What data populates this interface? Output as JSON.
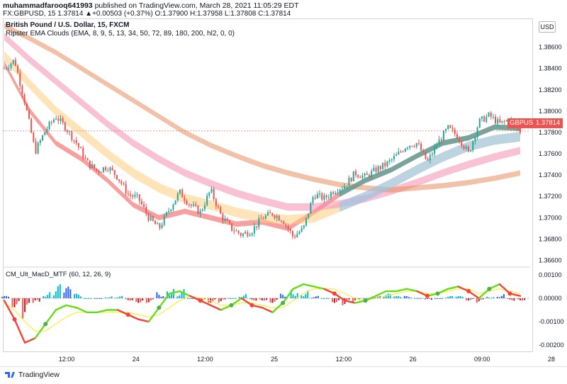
{
  "header": {
    "user": "muhammadfarooq641993",
    "published": "published on TradingView.com, March 28, 2021 11:05:29 EDT",
    "symbol_line": "FX:GBPUSD, 15  1.37814  ▲+0.00503 (+0.37%)  O:1.37900  H:1.37958  L:1.37808  C:1.37814"
  },
  "legend": {
    "title": "British Pound / U.S. Dollar, 15, FXCM",
    "indicator1": "Ripster EMA Clouds (EMA, 8, 9, 5, 13, 34, 50, 72, 89, 180, 200, hl2, 0, 0)",
    "indicator2": "CM_Ult_MacD_MTF (60, 12, 26, 9)"
  },
  "currency_label": "USD",
  "symbol_badge": "GBPUSD",
  "price_badge": "1.37814",
  "footer": {
    "brand": "TradingView"
  },
  "colors": {
    "bull": "#26a69a",
    "bear": "#ef5350",
    "cloud_fast": "#ef5350",
    "cloud_mid": "#ffcc80",
    "cloud_slow": "#f48fb1",
    "cloud_slowest": "#e5905f",
    "cloud_fast_bull": "#26a69a",
    "cloud_mid_bull": "#90caf9"
  },
  "chart_data": [
    {
      "type": "candlestick",
      "title": "British Pound / U.S. Dollar, 15, FXCM",
      "y_ticks": [
        "1.38600",
        "1.38400",
        "1.38200",
        "1.38000",
        "1.37800",
        "1.37600",
        "1.37400",
        "1.37200",
        "1.37000",
        "1.36800",
        "1.36600"
      ],
      "x_ticks": [
        "12:00",
        "24",
        "12:00",
        "25",
        "12:00",
        "26",
        "09:00",
        "28"
      ],
      "ylim": [
        1.3655,
        1.3875
      ],
      "last_price": 1.37814,
      "close_path": [
        {
          "t": 0,
          "p": 1.384
        },
        {
          "t": 0.02,
          "p": 1.3848
        },
        {
          "t": 0.04,
          "p": 1.3808
        },
        {
          "t": 0.06,
          "p": 1.3762
        },
        {
          "t": 0.08,
          "p": 1.3782
        },
        {
          "t": 0.1,
          "p": 1.3795
        },
        {
          "t": 0.12,
          "p": 1.3784
        },
        {
          "t": 0.14,
          "p": 1.377
        },
        {
          "t": 0.16,
          "p": 1.3752
        },
        {
          "t": 0.18,
          "p": 1.3744
        },
        {
          "t": 0.2,
          "p": 1.3748
        },
        {
          "t": 0.22,
          "p": 1.3738
        },
        {
          "t": 0.24,
          "p": 1.3722
        },
        {
          "t": 0.26,
          "p": 1.3718
        },
        {
          "t": 0.28,
          "p": 1.37
        },
        {
          "t": 0.3,
          "p": 1.369
        },
        {
          "t": 0.32,
          "p": 1.3708
        },
        {
          "t": 0.34,
          "p": 1.3724
        },
        {
          "t": 0.36,
          "p": 1.3712
        },
        {
          "t": 0.38,
          "p": 1.3705
        },
        {
          "t": 0.4,
          "p": 1.3726
        },
        {
          "t": 0.42,
          "p": 1.3702
        },
        {
          "t": 0.44,
          "p": 1.369
        },
        {
          "t": 0.46,
          "p": 1.3684
        },
        {
          "t": 0.48,
          "p": 1.3688
        },
        {
          "t": 0.5,
          "p": 1.37
        },
        {
          "t": 0.52,
          "p": 1.3704
        },
        {
          "t": 0.54,
          "p": 1.3698
        },
        {
          "t": 0.56,
          "p": 1.3682
        },
        {
          "t": 0.58,
          "p": 1.369
        },
        {
          "t": 0.6,
          "p": 1.3722
        },
        {
          "t": 0.62,
          "p": 1.3718
        },
        {
          "t": 0.64,
          "p": 1.3726
        },
        {
          "t": 0.66,
          "p": 1.373
        },
        {
          "t": 0.68,
          "p": 1.3742
        },
        {
          "t": 0.7,
          "p": 1.3738
        },
        {
          "t": 0.72,
          "p": 1.3745
        },
        {
          "t": 0.74,
          "p": 1.375
        },
        {
          "t": 0.76,
          "p": 1.3758
        },
        {
          "t": 0.78,
          "p": 1.3768
        },
        {
          "t": 0.8,
          "p": 1.377
        },
        {
          "t": 0.82,
          "p": 1.3752
        },
        {
          "t": 0.84,
          "p": 1.377
        },
        {
          "t": 0.86,
          "p": 1.3784
        },
        {
          "t": 0.88,
          "p": 1.3776
        },
        {
          "t": 0.9,
          "p": 1.376
        },
        {
          "t": 0.92,
          "p": 1.379
        },
        {
          "t": 0.94,
          "p": 1.3796
        },
        {
          "t": 0.96,
          "p": 1.3788
        },
        {
          "t": 0.98,
          "p": 1.3792
        },
        {
          "t": 1.0,
          "p": 1.37814
        }
      ],
      "ema_clouds": [
        {
          "name": "5/13",
          "points": [
            1.3845,
            1.38,
            1.377,
            1.3755,
            1.3735,
            1.3712,
            1.37,
            1.3706,
            1.37,
            1.3694,
            1.3696,
            1.369,
            1.3705,
            1.3722,
            1.3735,
            1.3745,
            1.3758,
            1.377,
            1.3775,
            1.3785,
            1.3784
          ],
          "width": 0.00025
        },
        {
          "name": "34/50",
          "points": [
            1.3852,
            1.3825,
            1.38,
            1.378,
            1.376,
            1.3742,
            1.3728,
            1.3718,
            1.3712,
            1.3705,
            1.37,
            1.3698,
            1.37,
            1.371,
            1.372,
            1.3732,
            1.3745,
            1.3757,
            1.3767,
            1.3773,
            1.3776
          ],
          "width": 0.00045
        },
        {
          "name": "72/89",
          "points": [
            1.387,
            1.3848,
            1.3828,
            1.3808,
            1.3788,
            1.377,
            1.3755,
            1.3742,
            1.3732,
            1.3723,
            1.3716,
            1.371,
            1.371,
            1.3713,
            1.3718,
            1.3725,
            1.3733,
            1.3742,
            1.375,
            1.3757,
            1.3763
          ],
          "width": 0.00035
        },
        {
          "name": "180/200",
          "points": [
            1.388,
            1.3868,
            1.3855,
            1.384,
            1.3825,
            1.381,
            1.3795,
            1.378,
            1.3768,
            1.3758,
            1.3749,
            1.3742,
            1.3736,
            1.3731,
            1.3728,
            1.3726,
            1.3728,
            1.373,
            1.3733,
            1.3737,
            1.3742
          ],
          "width": 0.00025
        }
      ]
    },
    {
      "type": "line",
      "title": "CM_Ult_MacD_MTF (60, 12, 26, 9)",
      "y_ticks": [
        "0.00100",
        "0.00000",
        "-0.00100",
        "-0.00200"
      ],
      "ylim": [
        -0.0023,
        0.0013
      ],
      "series": [
        {
          "name": "MACD",
          "values": [
            -0.0001,
            -0.0009,
            -0.0019,
            -0.0017,
            -0.0011,
            -0.0005,
            -0.0003,
            -0.0004,
            -0.0006,
            -0.0006,
            -0.0005,
            -0.0005,
            -0.0007,
            -0.0009,
            -0.001,
            -0.0004,
            0.0002,
            0.0003,
            0.0001,
            -0.0001,
            -0.0003,
            -0.0005,
            -0.0003,
            0.0,
            -0.0003,
            -0.0004,
            -0.0006,
            -0.0002,
            0.0004,
            0.0006,
            0.0005,
            0.0004,
            0.0002,
            -0.0001,
            -0.0002,
            -0.0001,
            0.0001,
            0.0003,
            0.0003,
            0.0004,
            0.0003,
            0.0001,
            0.0002,
            0.0004,
            0.0005,
            0.0003,
            0.0,
            0.0004,
            0.0006,
            0.0002,
            0.0001
          ]
        },
        {
          "name": "Signal",
          "values": [
            -0.0002,
            -0.0005,
            -0.001,
            -0.0014,
            -0.0014,
            -0.0011,
            -0.0008,
            -0.0006,
            -0.0006,
            -0.0006,
            -0.0006,
            -0.0006,
            -0.0006,
            -0.0007,
            -0.0008,
            -0.0007,
            -0.0004,
            -0.0001,
            0.0001,
            0.0,
            -0.0001,
            -0.0003,
            -0.0003,
            -0.0002,
            -0.0002,
            -0.0003,
            -0.0004,
            -0.0004,
            -0.0001,
            0.0002,
            0.0004,
            0.0004,
            0.0004,
            0.0002,
            0.0,
            -0.0001,
            -0.0,
            0.0001,
            0.0002,
            0.0003,
            0.0003,
            0.0002,
            0.0002,
            0.0003,
            0.0004,
            0.0004,
            0.0002,
            0.0003,
            0.0004,
            0.0003,
            0.0002
          ]
        },
        {
          "name": "Histogram",
          "values": [
            0.0001,
            -0.0004,
            -0.0009,
            -0.0003,
            0.0003,
            0.0006,
            0.0005,
            0.0002,
            0.0,
            0.0,
            0.0001,
            0.0001,
            -0.0001,
            -0.0002,
            -0.0002,
            0.0003,
            0.0006,
            0.0004,
            0.0,
            -0.0001,
            -0.0002,
            -0.0002,
            0.0,
            0.0002,
            -0.0001,
            -0.0001,
            -0.0002,
            0.0002,
            0.0005,
            0.0004,
            0.0001,
            0.0,
            -0.0002,
            -0.0003,
            -0.0002,
            0.0,
            0.0001,
            0.0002,
            0.0001,
            0.0001,
            0.0,
            -0.0001,
            0.0,
            0.0001,
            0.0001,
            -0.0001,
            -0.0002,
            0.0001,
            0.0002,
            -0.0001,
            -0.0001
          ]
        }
      ]
    }
  ]
}
